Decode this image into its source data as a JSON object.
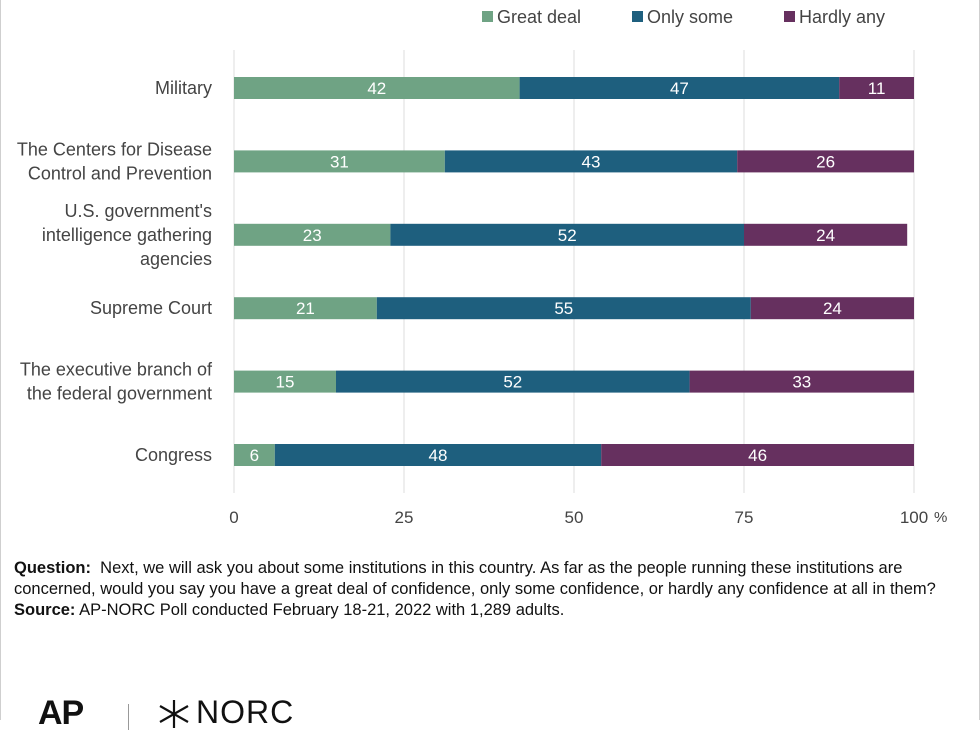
{
  "chart_data": {
    "type": "bar",
    "orientation": "horizontal",
    "stacked": true,
    "categories": [
      [
        "Military"
      ],
      [
        "The Centers for Disease",
        "Control and Prevention"
      ],
      [
        "U.S. government's",
        "intelligence gathering",
        "agencies"
      ],
      [
        "Supreme Court"
      ],
      [
        "The executive branch of",
        "the federal government"
      ],
      [
        "Congress"
      ]
    ],
    "series": [
      {
        "name": "Great deal",
        "color": "#6fa384",
        "values": [
          42,
          31,
          23,
          21,
          15,
          6
        ]
      },
      {
        "name": "Only some",
        "color": "#1e5f7e",
        "values": [
          47,
          43,
          52,
          55,
          52,
          48
        ]
      },
      {
        "name": "Hardly any",
        "color": "#66305f",
        "values": [
          11,
          26,
          24,
          24,
          33,
          46
        ]
      }
    ],
    "x_ticks": [
      "0",
      "25",
      "50",
      "75",
      "100"
    ],
    "x_unit": "%",
    "xlim": [
      0,
      100
    ],
    "grid": true,
    "legend_position": "top-right",
    "label_color": "#ffffff",
    "grid_color": "#dcdcdc",
    "text_color": "#444444"
  },
  "notes": {
    "question_label": "Question:",
    "question_text": "Next, we will ask you about some institutions in this country. As far as the people running these institutions are concerned, would you say you have a great deal of confidence, only some confidence, or hardly any confidence at all in them?",
    "source_label": "Source:",
    "source_text": "AP-NORC Poll conducted February 18-21, 2022 with 1,289 adults."
  },
  "logos": {
    "ap": "AP",
    "norc": "NORC"
  }
}
